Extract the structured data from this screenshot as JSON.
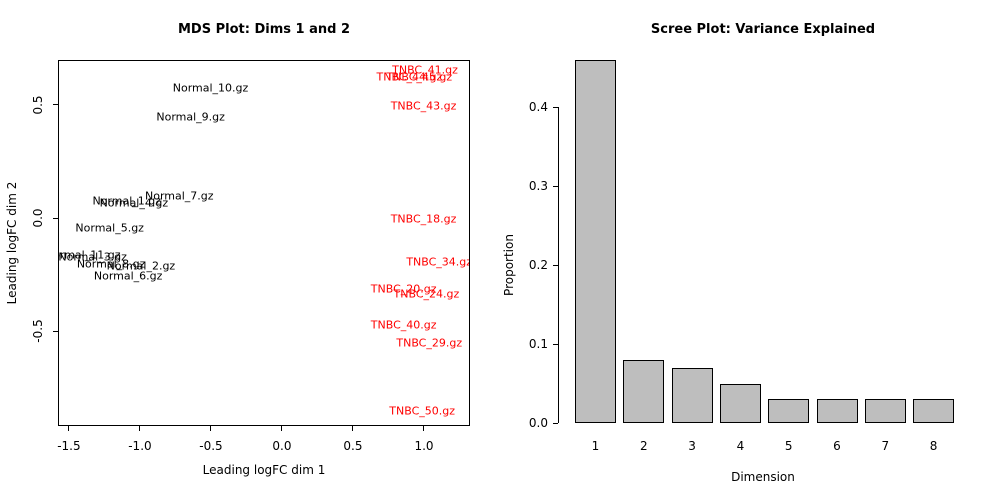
{
  "chart_data": [
    {
      "type": "scatter",
      "title": "MDS Plot: Dims 1 and 2",
      "xlabel": "Leading logFC dim 1",
      "ylabel": "Leading logFC dim 2",
      "xlim": [
        -1.577,
        1.324
      ],
      "ylim": [
        -0.92,
        0.699
      ],
      "x_ticks": [
        "-1.5",
        "-1.0",
        "-0.5",
        "0.0",
        "0.5",
        "1.0"
      ],
      "y_ticks": [
        "0.5",
        "0.0",
        "-0.5"
      ],
      "point_style": "text-labels",
      "grid": false,
      "legend": "none",
      "series": [
        {
          "name": "Normal",
          "color": "#000000",
          "points": [
            {
              "label": "Normal_10.gz",
              "x": -0.51,
              "y": 0.58
            },
            {
              "label": "Normal_9.gz",
              "x": -0.65,
              "y": 0.45
            },
            {
              "label": "Normal_7.gz",
              "x": -0.73,
              "y": 0.1
            },
            {
              "label": "Normal_1.gz",
              "x": -1.1,
              "y": 0.08
            },
            {
              "label": "Normal_4.gz",
              "x": -1.05,
              "y": 0.07
            },
            {
              "label": "Normal_5.gz",
              "x": -1.22,
              "y": -0.04
            },
            {
              "label": "Normal_11.gz",
              "x": -1.41,
              "y": -0.16
            },
            {
              "label": "Normal_3.gz",
              "x": -1.34,
              "y": -0.17
            },
            {
              "label": "Normal_8.gz",
              "x": -1.21,
              "y": -0.2
            },
            {
              "label": "Normal_2.gz",
              "x": -1.0,
              "y": -0.21
            },
            {
              "label": "Normal_6.gz",
              "x": -1.09,
              "y": -0.25
            }
          ]
        },
        {
          "name": "TNBC",
          "color": "#ff0000",
          "points": [
            {
              "label": "TNBC_41.gz",
              "x": 1.0,
              "y": 0.66
            },
            {
              "label": "TNBC_44.gz",
              "x": 0.89,
              "y": 0.63
            },
            {
              "label": "TNBC_45.gz",
              "x": 0.96,
              "y": 0.63
            },
            {
              "label": "TNBC_43.gz",
              "x": 0.99,
              "y": 0.5
            },
            {
              "label": "TNBC_18.gz",
              "x": 0.99,
              "y": 0.0
            },
            {
              "label": "TNBC_34.gz",
              "x": 1.1,
              "y": -0.19
            },
            {
              "label": "TNBC_20.gz",
              "x": 0.85,
              "y": -0.31
            },
            {
              "label": "TNBC_24.gz",
              "x": 1.01,
              "y": -0.33
            },
            {
              "label": "TNBC_40.gz",
              "x": 0.85,
              "y": -0.47
            },
            {
              "label": "TNBC_29.gz",
              "x": 1.03,
              "y": -0.55
            },
            {
              "label": "TNBC_50.gz",
              "x": 0.98,
              "y": -0.85
            }
          ]
        }
      ]
    },
    {
      "type": "bar",
      "title": "Scree Plot: Variance Explained",
      "xlabel": "Dimension",
      "ylabel": "Proportion",
      "categories": [
        "1",
        "2",
        "3",
        "4",
        "5",
        "6",
        "7",
        "8"
      ],
      "values": [
        0.46,
        0.08,
        0.07,
        0.05,
        0.03,
        0.03,
        0.03,
        0.03
      ],
      "y_ticks": [
        "0.0",
        "0.1",
        "0.2",
        "0.3",
        "0.4"
      ],
      "ylim": [
        0,
        0.4
      ],
      "bar_color": "#bebebe",
      "bar_border": "#000000",
      "grid": false,
      "legend": "none"
    }
  ]
}
